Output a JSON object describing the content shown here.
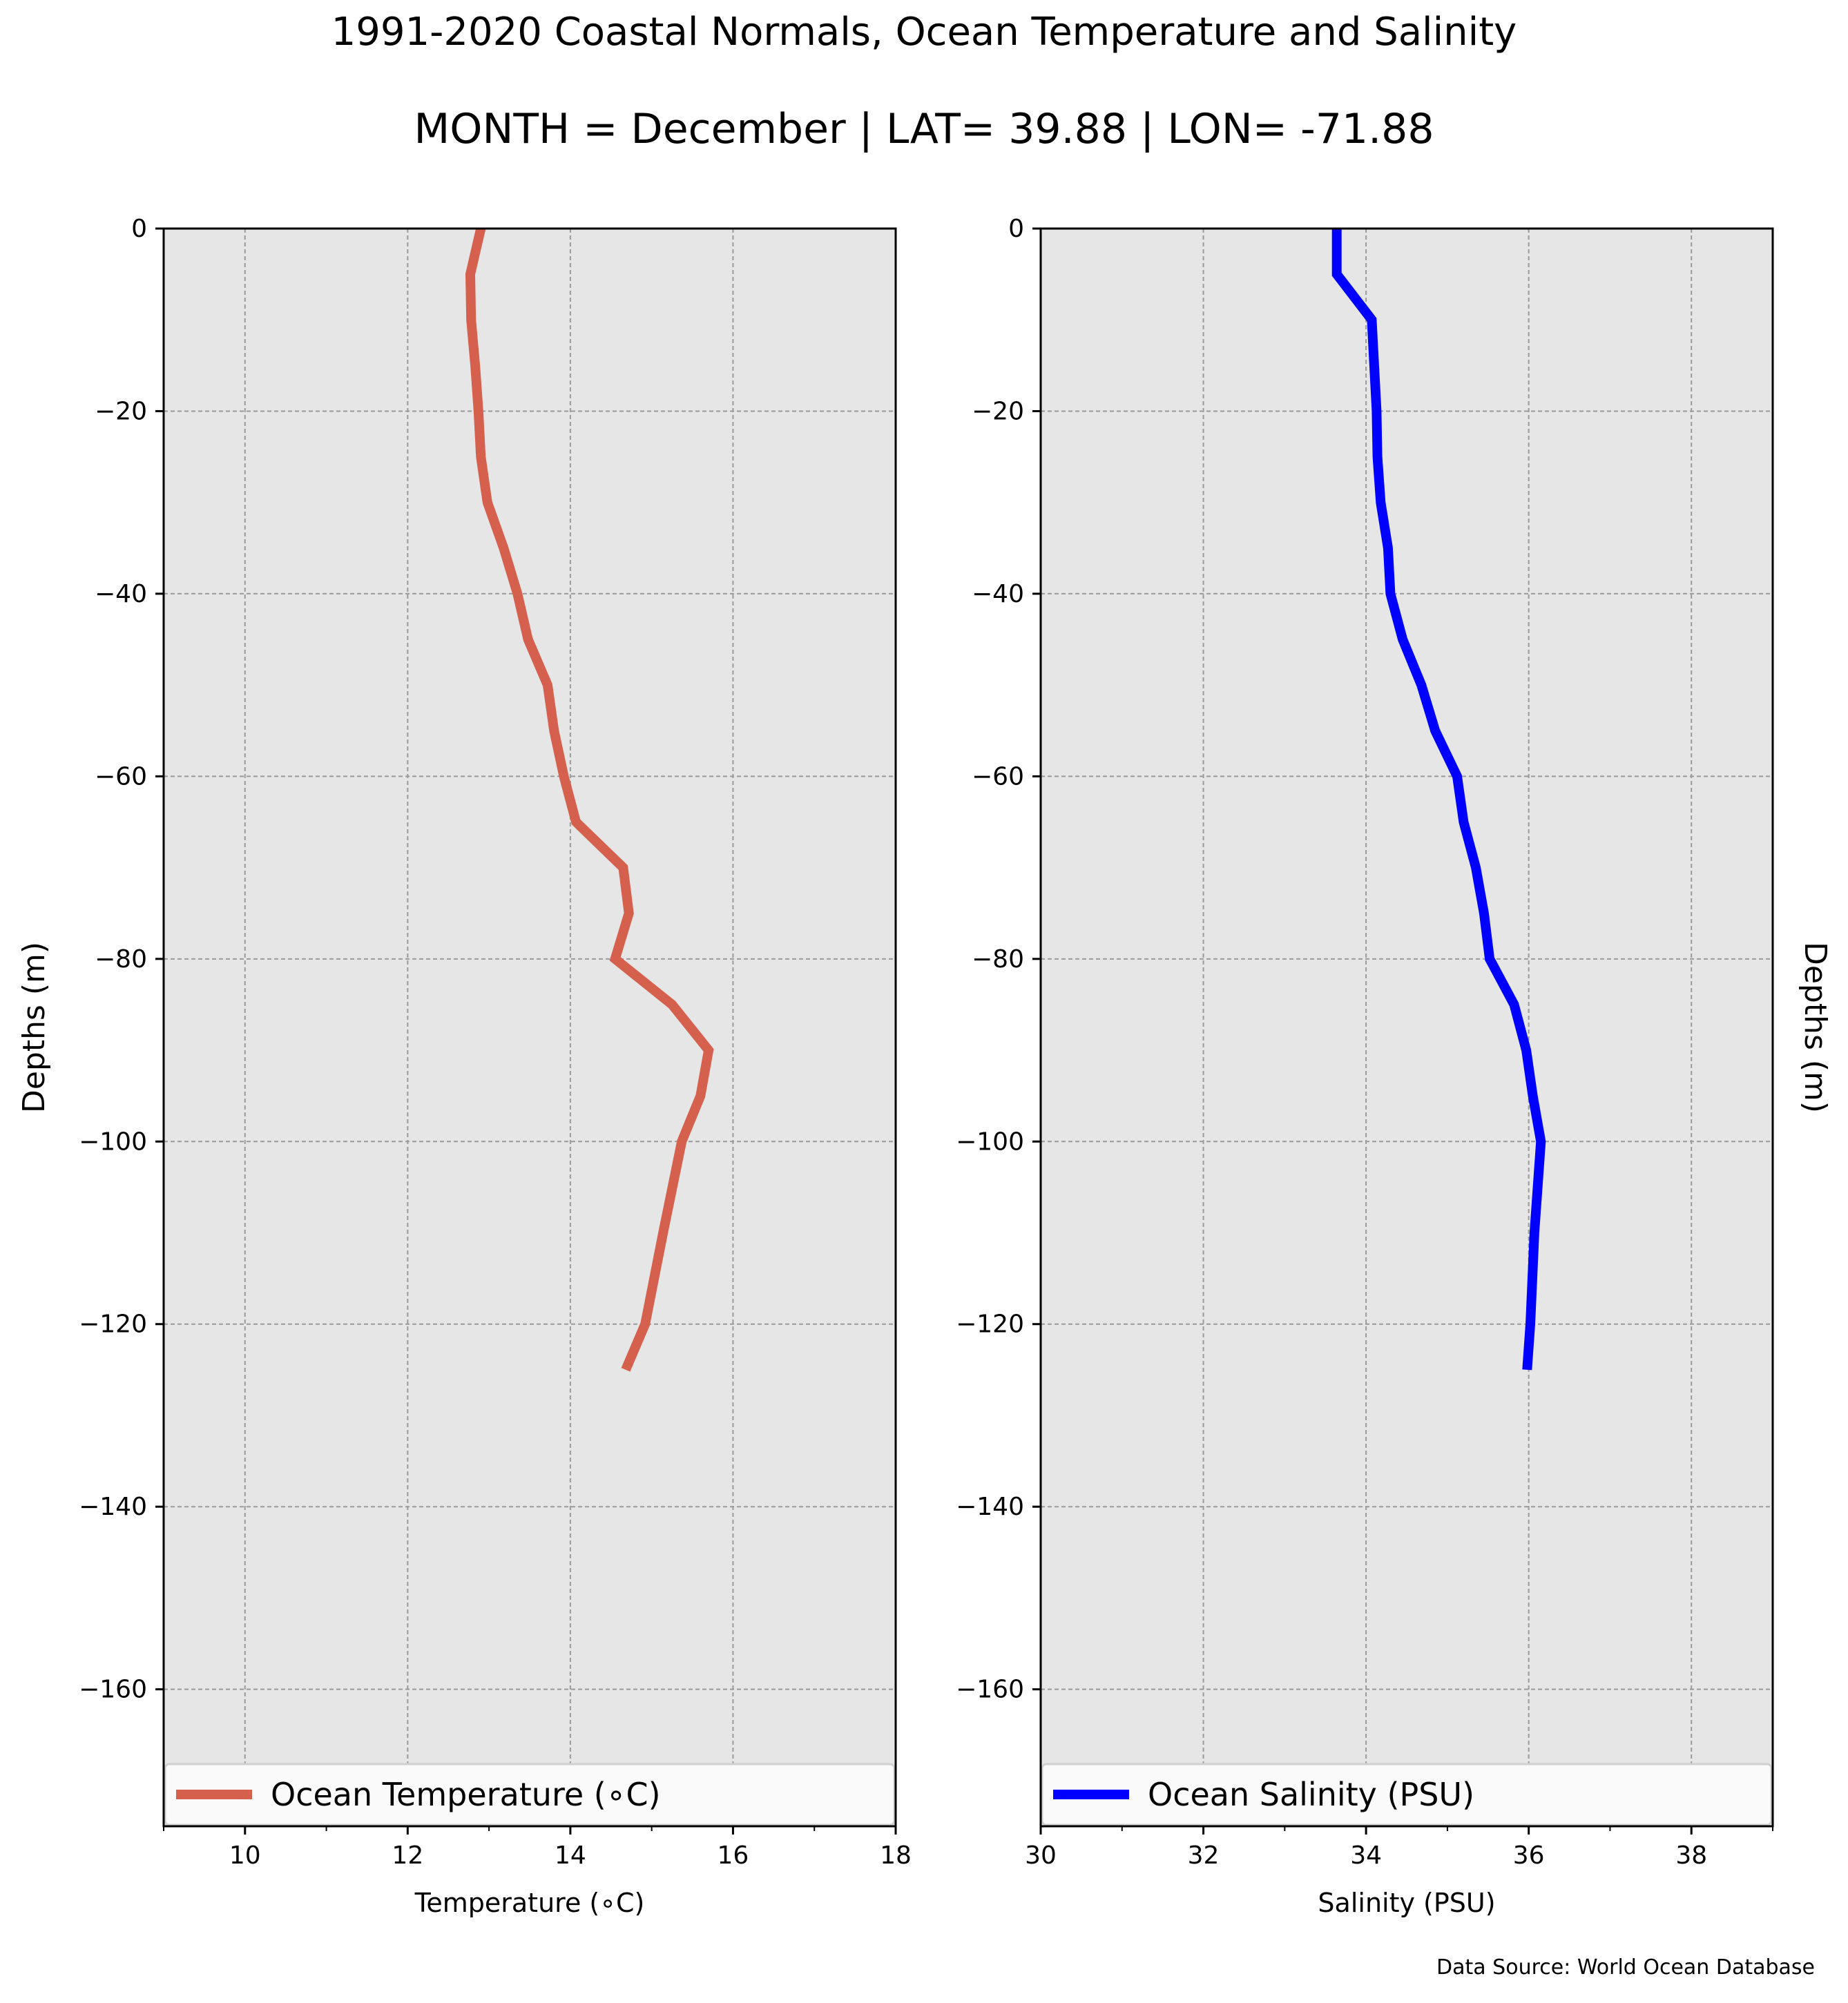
{
  "title": "1991-2020 Coastal Normals, Ocean Temperature and Salinity",
  "subtitle": "MONTH = December | LAT= 39.88 | LON= -71.88",
  "source_note": "Data Source: World Ocean Database",
  "chart_data": [
    {
      "type": "line",
      "xlabel": "Temperature (∘C)",
      "ylabel": "Depths (m)",
      "xlim": [
        9,
        18
      ],
      "ylim": [
        -175,
        0
      ],
      "xticks": [
        10,
        12,
        14,
        16,
        18
      ],
      "yticks": [
        0,
        -20,
        -40,
        -60,
        -80,
        -100,
        -120,
        -140,
        -160
      ],
      "grid": true,
      "legend_position": "bottom",
      "series": [
        {
          "name": "Ocean Temperature (∘C)",
          "color": "#d5604d",
          "x": [
            12.9,
            12.77,
            12.78,
            12.83,
            12.87,
            12.9,
            12.98,
            13.18,
            13.35,
            13.48,
            13.72,
            13.8,
            13.92,
            14.07,
            14.65,
            14.72,
            14.55,
            15.25,
            15.7,
            15.6,
            15.37,
            15.14,
            14.92,
            14.68
          ],
          "y": [
            0,
            -5,
            -10,
            -15,
            -20,
            -25,
            -30,
            -35,
            -40,
            -45,
            -50,
            -55,
            -60,
            -65,
            -70,
            -75,
            -80,
            -85,
            -90,
            -95,
            -100,
            -110,
            -120,
            -125
          ]
        }
      ]
    },
    {
      "type": "line",
      "xlabel": "Salinity (PSU)",
      "ylabel": "Depths (m)",
      "xlim": [
        30,
        39
      ],
      "ylim": [
        -175,
        0
      ],
      "xticks": [
        30,
        32,
        34,
        36,
        38
      ],
      "yticks": [
        0,
        -20,
        -40,
        -60,
        -80,
        -100,
        -120,
        -140,
        -160
      ],
      "grid": true,
      "legend_position": "bottom",
      "series": [
        {
          "name": "Ocean Salinity (PSU)",
          "color": "#0000ff",
          "x": [
            33.64,
            33.64,
            34.07,
            34.1,
            34.13,
            34.14,
            34.18,
            34.27,
            34.3,
            34.45,
            34.68,
            34.85,
            35.12,
            35.2,
            35.35,
            35.45,
            35.52,
            35.82,
            35.97,
            36.05,
            36.15,
            36.07,
            36.02,
            35.98
          ],
          "y": [
            0,
            -5,
            -10,
            -15,
            -20,
            -25,
            -30,
            -35,
            -40,
            -45,
            -50,
            -55,
            -60,
            -65,
            -70,
            -75,
            -80,
            -85,
            -90,
            -95,
            -100,
            -110,
            -120,
            -125
          ]
        }
      ]
    }
  ]
}
